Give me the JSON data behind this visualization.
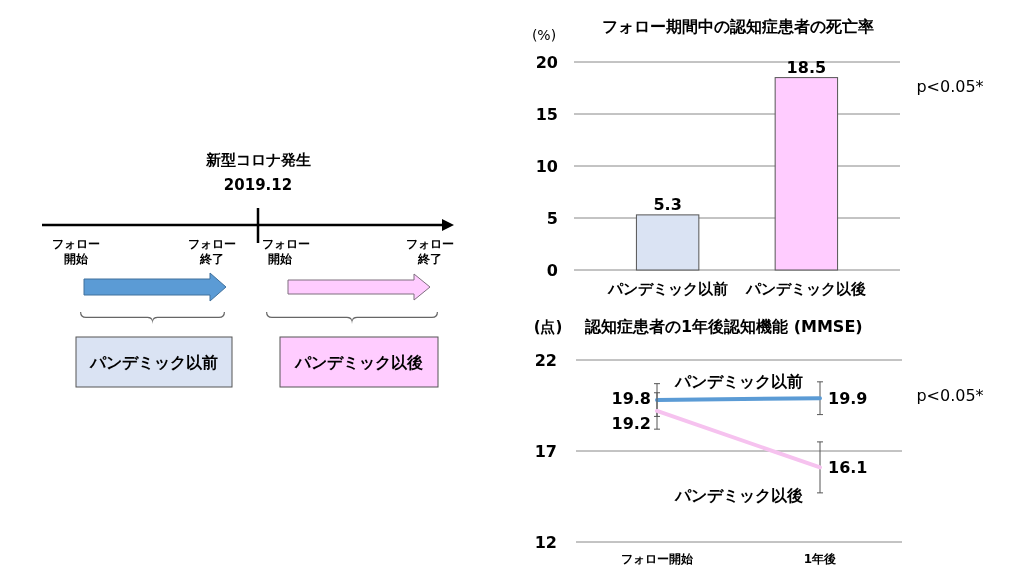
{
  "chart_data": [
    {
      "type": "other",
      "annotations": [
        "新型コロナ発生",
        "2019.12",
        "フォロー",
        "開始",
        "フォロー",
        "終了",
        "フォロー",
        "開始",
        "フォロー",
        "終了",
        "パンデミック以前",
        "パンデミック以後"
      ]
    },
    {
      "type": "bar",
      "title": "フォロー期間中の認知症患者の死亡率",
      "ylabel": "(%)",
      "categories": [
        "パンデミック以前",
        "パンデミック以後"
      ],
      "values": [
        5.3,
        18.5
      ],
      "colors": [
        "#dae3f3",
        "#ffccff"
      ],
      "ylim": [
        0,
        20
      ],
      "yticks": [
        0,
        5,
        10,
        15,
        20
      ],
      "grid": "y",
      "data_labels": true,
      "annotations": [
        "p<0.05*"
      ]
    },
    {
      "type": "line",
      "title": "認知症患者の1年後認知機能 (MMSE)",
      "ylabel": "(点)",
      "categories": [
        "フォロー開始",
        "1年後"
      ],
      "series": [
        {
          "name": "パンデミック以前",
          "color": "#5b9bd5",
          "values": [
            19.8,
            19.9
          ],
          "errors": [
            0.9,
            0.9
          ]
        },
        {
          "name": "パンデミック以後",
          "color": "#f6c2ef",
          "values": [
            19.2,
            16.1
          ],
          "errors": [
            1.0,
            1.4
          ]
        }
      ],
      "ylim": [
        12,
        22
      ],
      "yticks": [
        12,
        17,
        22
      ],
      "grid": "y",
      "data_labels": true,
      "annotations": [
        "p<0.05*"
      ]
    }
  ]
}
